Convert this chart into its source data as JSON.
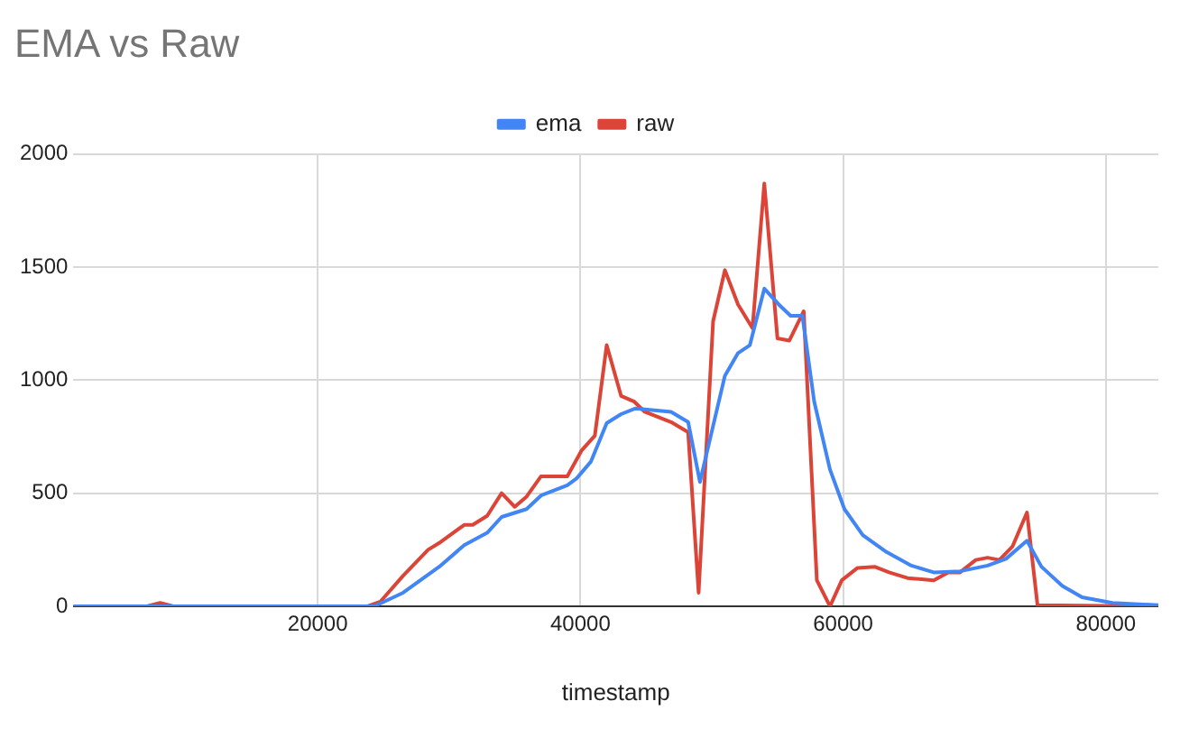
{
  "chart_data": {
    "type": "line",
    "title": "EMA vs Raw",
    "xlabel": "timestamp",
    "xlim": [
      1400,
      84000
    ],
    "xticks": [
      20000,
      40000,
      60000,
      80000
    ],
    "ylim": [
      0,
      2000
    ],
    "yticks": [
      0,
      500,
      1000,
      1500,
      2000
    ],
    "grid": true,
    "legend": "top",
    "marker": "none",
    "line_style": "solid",
    "series": [
      {
        "name": "ema",
        "color": "#4285f4",
        "x": [
          1400,
          24300,
          26500,
          29250,
          31150,
          32900,
          34000,
          35900,
          37000,
          39000,
          39700,
          40800,
          42000,
          43100,
          44200,
          46900,
          48200,
          49100,
          51000,
          52000,
          52900,
          54000,
          55100,
          56000,
          56900,
          57800,
          59000,
          60100,
          61500,
          63300,
          65200,
          66900,
          68900,
          71000,
          72400,
          74000,
          75100,
          76700,
          78200,
          80500,
          84000
        ],
        "values": [
          0,
          0,
          60,
          175,
          270,
          325,
          395,
          430,
          490,
          535,
          565,
          640,
          810,
          850,
          875,
          860,
          815,
          550,
          1020,
          1120,
          1155,
          1405,
          1335,
          1285,
          1285,
          905,
          605,
          430,
          315,
          240,
          180,
          150,
          155,
          180,
          210,
          290,
          175,
          90,
          40,
          15,
          5
        ]
      },
      {
        "name": "raw",
        "color": "#db4437",
        "x": [
          1400,
          7000,
          8000,
          9000,
          23800,
          24760,
          26500,
          28400,
          29250,
          31150,
          31800,
          32900,
          34000,
          35000,
          35900,
          37000,
          39000,
          40100,
          41100,
          42000,
          43100,
          44100,
          44900,
          46900,
          48200,
          49000,
          50100,
          51000,
          52000,
          53100,
          54000,
          55000,
          55900,
          57000,
          58000,
          59000,
          59900,
          61100,
          62400,
          63500,
          64900,
          66900,
          68000,
          68900,
          70100,
          71000,
          71900,
          72900,
          74000,
          74800,
          84000
        ],
        "values": [
          0,
          0,
          15,
          0,
          0,
          20,
          135,
          250,
          280,
          360,
          360,
          400,
          500,
          440,
          485,
          575,
          575,
          690,
          755,
          1155,
          930,
          905,
          860,
          815,
          770,
          60,
          1260,
          1487,
          1335,
          1230,
          1870,
          1185,
          1175,
          1305,
          115,
          0,
          115,
          170,
          175,
          150,
          125,
          115,
          150,
          150,
          205,
          215,
          205,
          265,
          415,
          5,
          0
        ]
      }
    ]
  }
}
